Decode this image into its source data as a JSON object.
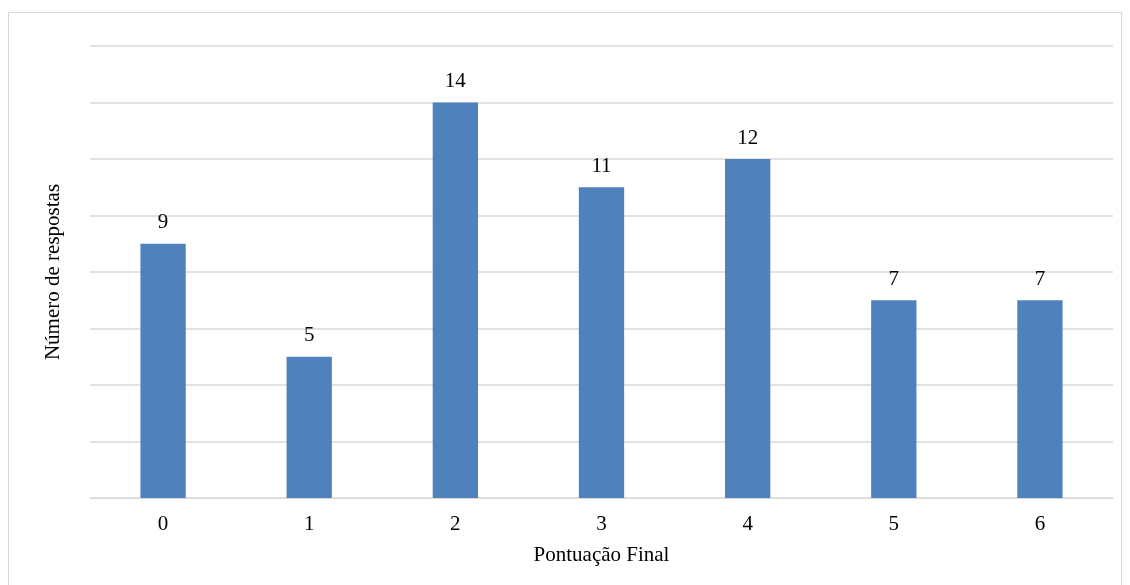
{
  "chart_data": {
    "type": "bar",
    "xlabel": "Pontuação Final",
    "ylabel": "Número de respostas",
    "categories": [
      "0",
      "1",
      "2",
      "3",
      "4",
      "5",
      "6"
    ],
    "values": [
      9,
      5,
      14,
      11,
      12,
      7,
      7
    ],
    "color": "#4f81bd",
    "data_labels": true,
    "ylim": [
      0,
      16
    ],
    "yticks": [
      {
        "value": 0,
        "label": null
      },
      {
        "value": 2,
        "label": null
      },
      {
        "value": 4,
        "label": null
      },
      {
        "value": 6,
        "label": null
      },
      {
        "value": 8,
        "label": null
      },
      {
        "value": 10,
        "label": null
      },
      {
        "value": 12,
        "label": null
      },
      {
        "value": 14,
        "label": null
      },
      {
        "value": 16,
        "label": null
      }
    ],
    "tick_labels": "x",
    "grid": "y"
  }
}
